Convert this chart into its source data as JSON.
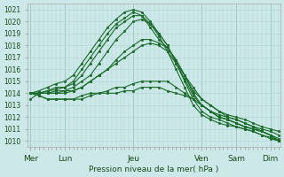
{
  "title": "",
  "xlabel": "Pression niveau de la mer( hPa )",
  "background_color": "#cce8e8",
  "grid_color": "#b0d4d4",
  "line_color": "#1a6b2a",
  "ylim": [
    1009.5,
    1021.5
  ],
  "yticks": [
    1010,
    1011,
    1012,
    1013,
    1014,
    1015,
    1016,
    1017,
    1018,
    1019,
    1020,
    1021
  ],
  "day_labels": [
    "Mer",
    "Lun",
    "Jeu",
    "Ven",
    "Sam",
    "Dim"
  ],
  "day_x": [
    0,
    24,
    72,
    120,
    144,
    168
  ],
  "xlim": [
    -2,
    175
  ],
  "series": [
    {
      "x": [
        0,
        6,
        12,
        18,
        24,
        30,
        36,
        42,
        48,
        54,
        60,
        66,
        72,
        78,
        84,
        90,
        96,
        102,
        108,
        114,
        120,
        126,
        132,
        138,
        144,
        150,
        156,
        162,
        168,
        174
      ],
      "y": [
        1013.5,
        1014.0,
        1014.2,
        1014.3,
        1014.5,
        1015.0,
        1016.0,
        1017.0,
        1018.0,
        1019.0,
        1019.8,
        1020.3,
        1020.8,
        1020.5,
        1019.5,
        1018.5,
        1017.8,
        1016.8,
        1015.5,
        1014.0,
        1013.0,
        1012.5,
        1012.2,
        1012.0,
        1011.8,
        1011.5,
        1011.2,
        1010.8,
        1010.5,
        1010.0
      ]
    },
    {
      "x": [
        0,
        6,
        12,
        18,
        24,
        30,
        36,
        42,
        48,
        54,
        60,
        66,
        72,
        78,
        84,
        90,
        96,
        102,
        108,
        114,
        120,
        126,
        132,
        138,
        144,
        150,
        156,
        162,
        168,
        174
      ],
      "y": [
        1014.0,
        1014.2,
        1014.5,
        1014.8,
        1015.0,
        1015.5,
        1016.5,
        1017.5,
        1018.5,
        1019.5,
        1020.2,
        1020.8,
        1021.0,
        1020.8,
        1020.0,
        1019.0,
        1018.0,
        1016.5,
        1015.0,
        1013.5,
        1012.5,
        1012.0,
        1011.8,
        1011.5,
        1011.2,
        1011.0,
        1010.8,
        1010.5,
        1010.2,
        1010.0
      ]
    },
    {
      "x": [
        0,
        6,
        12,
        18,
        24,
        30,
        36,
        42,
        48,
        54,
        60,
        66,
        72,
        78,
        84,
        90,
        96,
        102,
        108,
        114,
        120,
        126,
        132,
        138,
        144,
        150,
        156,
        162,
        168,
        174
      ],
      "y": [
        1014.0,
        1014.0,
        1014.2,
        1014.5,
        1014.5,
        1014.8,
        1015.5,
        1016.5,
        1017.5,
        1018.5,
        1019.5,
        1020.0,
        1020.5,
        1020.5,
        1019.8,
        1018.8,
        1017.5,
        1016.0,
        1014.5,
        1013.0,
        1012.2,
        1011.8,
        1011.5,
        1011.3,
        1011.2,
        1011.0,
        1010.8,
        1010.5,
        1010.3,
        1010.0
      ]
    },
    {
      "x": [
        0,
        6,
        12,
        18,
        24,
        30,
        36,
        42,
        48,
        54,
        60,
        66,
        72,
        78,
        84,
        90,
        96,
        102,
        108,
        114,
        120,
        126,
        132,
        138,
        144,
        150,
        156,
        162,
        168,
        174
      ],
      "y": [
        1014.0,
        1014.0,
        1014.0,
        1014.2,
        1014.2,
        1014.5,
        1015.0,
        1015.5,
        1016.5,
        1017.5,
        1018.5,
        1019.2,
        1020.0,
        1020.2,
        1019.8,
        1019.0,
        1018.0,
        1016.5,
        1015.2,
        1013.8,
        1013.0,
        1012.5,
        1012.0,
        1011.8,
        1011.5,
        1011.2,
        1011.0,
        1010.8,
        1010.5,
        1010.2
      ]
    },
    {
      "x": [
        0,
        6,
        12,
        18,
        24,
        30,
        36,
        42,
        48,
        54,
        60,
        66,
        72,
        78,
        84,
        90,
        96,
        102,
        108,
        114,
        120,
        126,
        132,
        138,
        144,
        150,
        156,
        162,
        168,
        174
      ],
      "y": [
        1014.0,
        1014.0,
        1014.0,
        1014.0,
        1014.0,
        1014.2,
        1014.5,
        1015.0,
        1015.5,
        1016.0,
        1016.8,
        1017.5,
        1018.0,
        1018.5,
        1018.5,
        1018.2,
        1017.8,
        1016.8,
        1015.5,
        1014.2,
        1013.5,
        1013.0,
        1012.5,
        1012.0,
        1011.8,
        1011.5,
        1011.2,
        1011.0,
        1010.8,
        1010.5
      ]
    },
    {
      "x": [
        0,
        6,
        12,
        18,
        24,
        30,
        36,
        42,
        48,
        54,
        60,
        66,
        72,
        78,
        84,
        90,
        96,
        102,
        108,
        114,
        120,
        126,
        132,
        138,
        144,
        150,
        156,
        162,
        168,
        174
      ],
      "y": [
        1014.0,
        1013.8,
        1013.5,
        1013.5,
        1013.5,
        1013.5,
        1013.8,
        1014.0,
        1014.0,
        1014.2,
        1014.5,
        1014.5,
        1014.8,
        1015.0,
        1015.0,
        1015.0,
        1015.0,
        1014.5,
        1014.0,
        1013.5,
        1013.0,
        1012.5,
        1012.0,
        1011.8,
        1011.5,
        1011.2,
        1011.0,
        1010.8,
        1010.5,
        1010.0
      ]
    },
    {
      "x": [
        0,
        6,
        12,
        18,
        24,
        30,
        36,
        42,
        48,
        54,
        60,
        66,
        72,
        78,
        84,
        90,
        96,
        102,
        108,
        114,
        120,
        126,
        132,
        138,
        144,
        150,
        156,
        162,
        168,
        174
      ],
      "y": [
        1014.0,
        1013.8,
        1013.5,
        1013.5,
        1013.5,
        1013.5,
        1013.5,
        1013.8,
        1014.0,
        1014.0,
        1014.0,
        1014.2,
        1014.2,
        1014.5,
        1014.5,
        1014.5,
        1014.2,
        1014.0,
        1013.8,
        1013.5,
        1013.0,
        1012.5,
        1012.0,
        1011.8,
        1011.5,
        1011.2,
        1011.0,
        1010.8,
        1010.5,
        1010.0
      ]
    },
    {
      "x": [
        0,
        6,
        12,
        18,
        24,
        30,
        36,
        42,
        48,
        54,
        60,
        66,
        72,
        78,
        84,
        90,
        96,
        102,
        108,
        114,
        120,
        126,
        132,
        138,
        144,
        150,
        156,
        162,
        168,
        174
      ],
      "y": [
        1014.0,
        1014.0,
        1014.0,
        1014.0,
        1014.2,
        1014.2,
        1014.5,
        1015.0,
        1015.5,
        1016.0,
        1016.5,
        1017.0,
        1017.5,
        1018.0,
        1018.2,
        1018.0,
        1017.5,
        1016.5,
        1015.5,
        1014.5,
        1013.5,
        1013.0,
        1012.5,
        1012.2,
        1012.0,
        1011.8,
        1011.5,
        1011.2,
        1011.0,
        1010.8
      ]
    }
  ]
}
